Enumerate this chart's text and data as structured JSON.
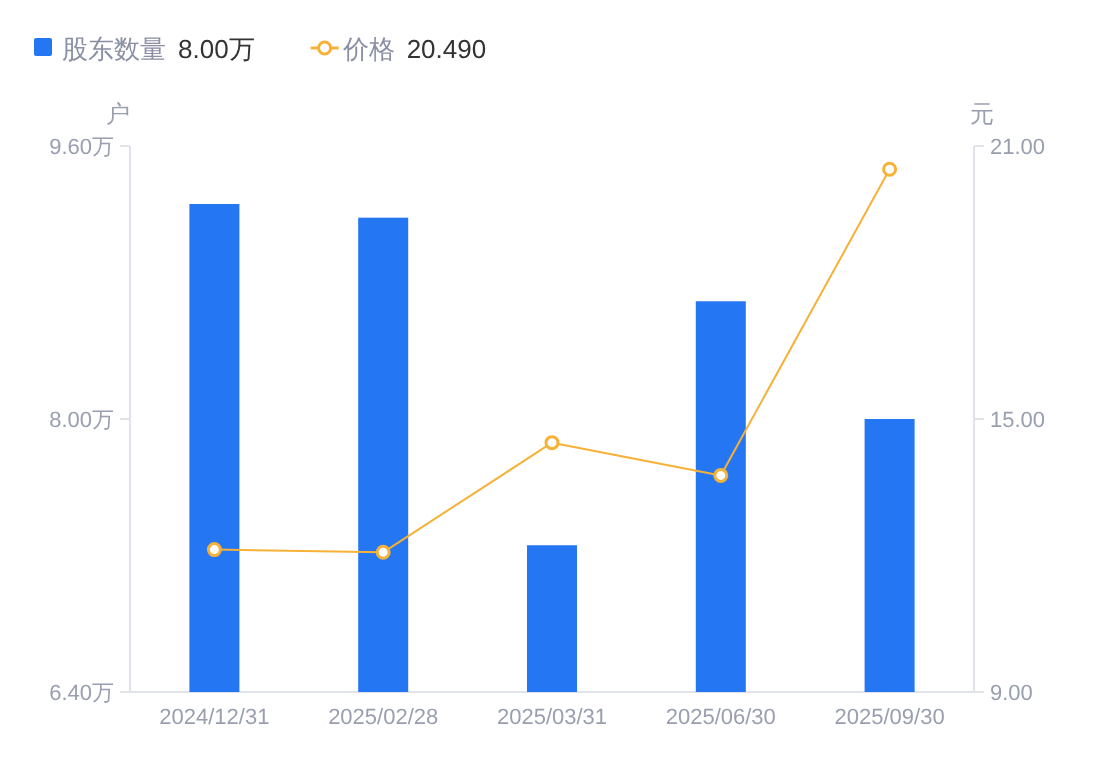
{
  "chart_data": {
    "type": "bar",
    "categories": [
      "2024/12/31",
      "2025/02/28",
      "2025/03/31",
      "2025/06/30",
      "2025/09/30"
    ],
    "series": [
      {
        "name": "股东数量",
        "color": "#2476f2",
        "values": [
          9.26,
          9.18,
          7.26,
          8.69,
          8.0
        ]
      },
      {
        "name": "价格",
        "type": "line",
        "axis": "y2",
        "color": "#f7b136",
        "marker": "circle",
        "line_style": "solid",
        "values": [
          12.13,
          12.07,
          14.48,
          13.76,
          20.49
        ]
      }
    ],
    "ylabel": "户",
    "y2label": "元",
    "ylim": [
      6.4,
      9.6
    ],
    "yticks": [
      {
        "value": 6.4,
        "label": "6.40万"
      },
      {
        "value": 8.0,
        "label": "8.00万"
      },
      {
        "value": 9.6,
        "label": "9.60万"
      }
    ],
    "y2lim": [
      9,
      21
    ],
    "y2ticks": [
      {
        "value": 9,
        "label": "9.00"
      },
      {
        "value": 15,
        "label": "15.00"
      },
      {
        "value": 21,
        "label": "21.00"
      }
    ],
    "annotations": [
      "8.00万",
      "20.490"
    ],
    "legend": "top left",
    "grid": false
  }
}
